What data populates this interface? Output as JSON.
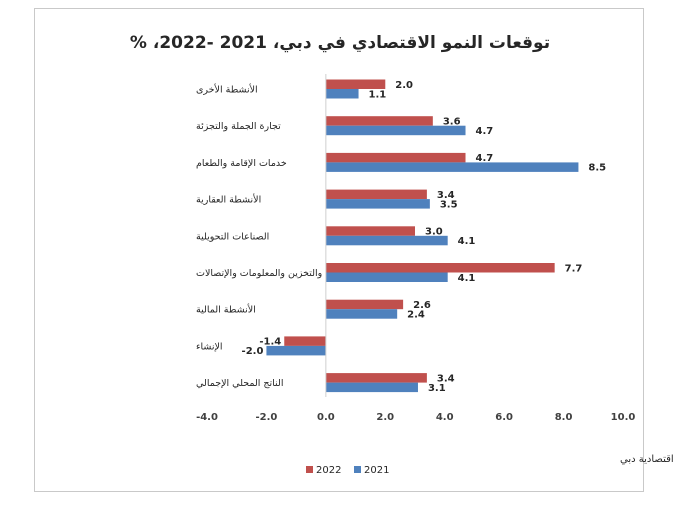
{
  "chart_data": {
    "type": "bar",
    "orientation": "horizontal",
    "title": "توقعات النمو الاقتصادي في دبي، 2021 -2022، %",
    "categories": [
      "الأنشطة الأخرى",
      "تجارة الجملة والتجزئة",
      "خدمات الإقامة والطعام",
      "الأنشطة العقارية",
      "الصناعات التحويلية",
      "النقل والتخزين والمعلومات والإتصالات",
      "الأنشطة المالية",
      "الإنشاء",
      "الناتج المحلي الإجمالي"
    ],
    "series": [
      {
        "name": "2022",
        "color": "#c0504d",
        "values": [
          2.0,
          3.6,
          4.7,
          3.4,
          3.0,
          7.7,
          2.6,
          -1.4,
          3.4
        ],
        "labels": [
          "2.0",
          "3.6",
          "4.7",
          "3.4",
          "3.0",
          "7.7",
          "2.6",
          "-1.4",
          "3.4"
        ]
      },
      {
        "name": "2021",
        "color": "#4f81bd",
        "values": [
          1.1,
          4.7,
          8.5,
          3.5,
          4.1,
          4.1,
          2.4,
          -2.0,
          3.1
        ],
        "labels": [
          "1.1",
          "4.7",
          "8.5",
          "3.5",
          "4.1",
          "4.1",
          "2.4",
          "-2.0",
          "3.1"
        ]
      }
    ],
    "xlim": [
      -4.0,
      10.0
    ],
    "xticks": [
      "-4.0",
      "-2.0",
      "0.0",
      "2.0",
      "4.0",
      "6.0",
      "8.0",
      "10.0"
    ],
    "xtick_values": [
      -4,
      -2,
      0,
      2,
      4,
      6,
      8,
      10
    ],
    "legend_position": "bottom-left",
    "grid": false,
    "source": "المصدر: اقتصادية دبي"
  }
}
